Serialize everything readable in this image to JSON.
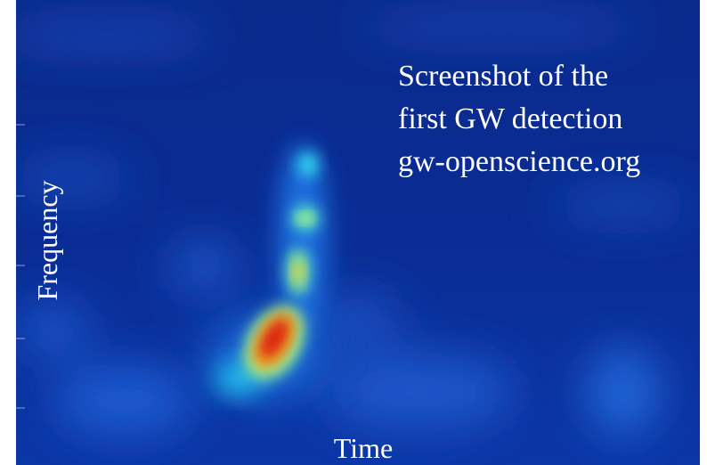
{
  "annotation": {
    "lines": [
      "Screenshot of the",
      "first GW detection",
      "gw-openscience.org"
    ]
  },
  "axes": {
    "x_label": "Time",
    "y_label": "Frequency"
  }
}
